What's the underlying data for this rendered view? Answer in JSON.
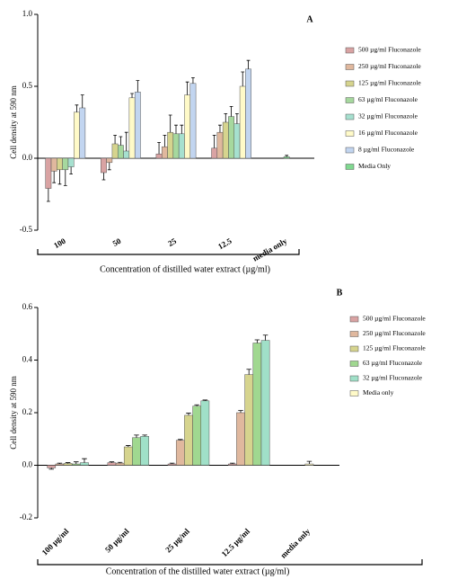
{
  "chart_data": [
    {
      "type": "bar",
      "title": "A",
      "xlabel": "Concentration of distilled water extract (µg/ml)",
      "ylabel": "Cell density at 590 nm",
      "categories": [
        "100",
        "50",
        "25",
        "12.5",
        "media only"
      ],
      "ylim": [
        -0.5,
        1
      ],
      "yticks": [
        -0.5,
        {
          "value": 0,
          "label": "0.0"
        },
        0.5,
        {
          "value": 1,
          "label": "1.0"
        }
      ],
      "legend": "right",
      "series": [
        {
          "name": "500 µg/ml Fluconazole",
          "color": "#d9a3a3",
          "values": [
            -0.21,
            -0.1,
            0.03,
            0.07,
            null
          ],
          "errors": [
            0.09,
            0.05,
            0.08,
            0.09,
            null
          ]
        },
        {
          "name": "250 µg/ml Fluconazole",
          "color": "#e0b89e",
          "values": [
            -0.09,
            -0.03,
            0.08,
            0.18,
            null
          ],
          "errors": [
            0.08,
            0.05,
            0.08,
            0.05,
            null
          ]
        },
        {
          "name": "125 µg/ml Fluconazole",
          "color": "#d6d48e",
          "values": [
            -0.08,
            0.1,
            0.18,
            0.25,
            null
          ],
          "errors": [
            0.1,
            0.06,
            0.12,
            0.06,
            null
          ]
        },
        {
          "name": "63 µg/ml Fluconazole",
          "color": "#a6d89e",
          "values": [
            -0.08,
            0.09,
            0.17,
            0.29,
            null
          ],
          "errors": [
            0.11,
            0.06,
            0.06,
            0.07,
            null
          ]
        },
        {
          "name": "32 µg/ml Fluconazole",
          "color": "#a6e0cf",
          "values": [
            -0.06,
            0.05,
            0.17,
            0.24,
            null
          ],
          "errors": [
            0.05,
            0.13,
            0.06,
            0.07,
            null
          ]
        },
        {
          "name": "16 µg/ml Fluconazole",
          "color": "#fffac8",
          "values": [
            0.32,
            0.42,
            0.44,
            0.5,
            null
          ],
          "errors": [
            0.05,
            0.03,
            0.09,
            0.1,
            null
          ]
        },
        {
          "name": "8 µg/ml Fluconazole",
          "color": "#c2d5f0",
          "values": [
            0.35,
            0.46,
            0.52,
            0.62,
            null
          ],
          "errors": [
            0.09,
            0.08,
            0.04,
            0.06,
            null
          ]
        },
        {
          "name": "Media Only",
          "color": "#80d890",
          "values": [
            null,
            null,
            null,
            null,
            0.01
          ],
          "errors": [
            null,
            null,
            null,
            null,
            0.01
          ]
        }
      ]
    },
    {
      "type": "bar",
      "title": "B",
      "xlabel": "Concentration of the distilled water extract (µg/ml)",
      "ylabel": "Cell density at 590 nm",
      "categories": [
        "100 µg/ml",
        "50 µg/ml",
        "25 µg/ml",
        "12.5 µg/ml",
        "media only"
      ],
      "ylim": [
        -0.2,
        0.6
      ],
      "yticks": [
        -0.2,
        {
          "value": 0,
          "label": "0.0"
        },
        0.2,
        0.4,
        0.6
      ],
      "legend": "right",
      "series": [
        {
          "name": "500 µg/ml Fluconazole",
          "color": "#d9a3a3",
          "values": [
            -0.01,
            0.01,
            0.005,
            0.005,
            null
          ],
          "errors": [
            0.005,
            0.003,
            0.003,
            0.003,
            null
          ]
        },
        {
          "name": "250 µg/ml Fluconazole",
          "color": "#e0b89e",
          "values": [
            0.005,
            0.008,
            0.095,
            0.2,
            null
          ],
          "errors": [
            0.003,
            0.003,
            0.003,
            0.008,
            null
          ]
        },
        {
          "name": "125 µg/ml Fluconazole",
          "color": "#d6d48e",
          "values": [
            0.007,
            0.07,
            0.19,
            0.345,
            null
          ],
          "errors": [
            0.003,
            0.005,
            0.008,
            0.02,
            null
          ]
        },
        {
          "name": "63 µg/ml Fluconazole",
          "color": "#a0d890",
          "values": [
            0.005,
            0.105,
            0.225,
            0.465,
            null
          ],
          "errors": [
            0.008,
            0.01,
            0.005,
            0.012,
            null
          ]
        },
        {
          "name": "32 µg/ml Fluconazole",
          "color": "#a0e0c8",
          "values": [
            0.01,
            0.11,
            0.245,
            0.475,
            null
          ],
          "errors": [
            0.015,
            0.005,
            0.003,
            0.02,
            null
          ]
        },
        {
          "name": "Media only",
          "color": "#fffac8",
          "values": [
            null,
            null,
            null,
            null,
            0.005
          ],
          "errors": [
            null,
            null,
            null,
            null,
            0.01
          ]
        }
      ]
    }
  ]
}
